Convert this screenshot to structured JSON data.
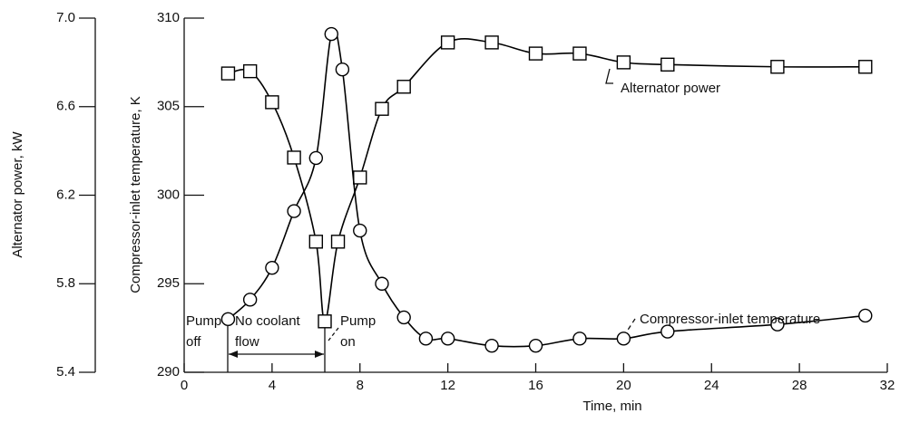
{
  "chart_data": {
    "type": "line",
    "xlabel": "Time, min",
    "ylabel": "Compressor-inlet temperature, K",
    "y2label": "Alternator power, kW",
    "xlim": [
      0,
      32
    ],
    "xticks": [
      0,
      4,
      8,
      12,
      16,
      20,
      24,
      28,
      32
    ],
    "ylim": [
      290,
      310
    ],
    "yticks": [
      290,
      295,
      300,
      305,
      310
    ],
    "y2lim": [
      5.4,
      7.0
    ],
    "y2ticks": [
      {
        "value": 7.0,
        "label": "7.0"
      },
      6.6,
      6.2,
      5.8,
      5.4
    ],
    "series": [
      {
        "name": "Alternator power",
        "marker": "square",
        "axis": "y2",
        "color": "#000000",
        "x": [
          2,
          3,
          4,
          5,
          6,
          6.4,
          7,
          8,
          9,
          10,
          12,
          14,
          16,
          18,
          20,
          22,
          27,
          31
        ],
        "values": [
          6.75,
          6.76,
          6.62,
          6.37,
          5.99,
          5.63,
          5.99,
          6.28,
          6.59,
          6.69,
          6.89,
          6.89,
          6.84,
          6.84,
          6.8,
          6.79,
          6.78,
          6.78
        ]
      },
      {
        "name": "Compressor-inlet temperature",
        "marker": "circle",
        "color": "#000000",
        "x": [
          2,
          3,
          4,
          5,
          6,
          6.7,
          7.2,
          8,
          9,
          10,
          11,
          12,
          14,
          16,
          18,
          20,
          22,
          27,
          31
        ],
        "values": [
          293.0,
          294.1,
          295.9,
          299.1,
          302.1,
          309.1,
          307.1,
          298.0,
          295.0,
          293.1,
          291.9,
          291.9,
          291.5,
          291.5,
          291.9,
          291.9,
          292.3,
          292.7,
          293.2
        ]
      }
    ],
    "annotations": [
      "Pump off",
      "No coolant flow",
      "Pump on"
    ]
  }
}
